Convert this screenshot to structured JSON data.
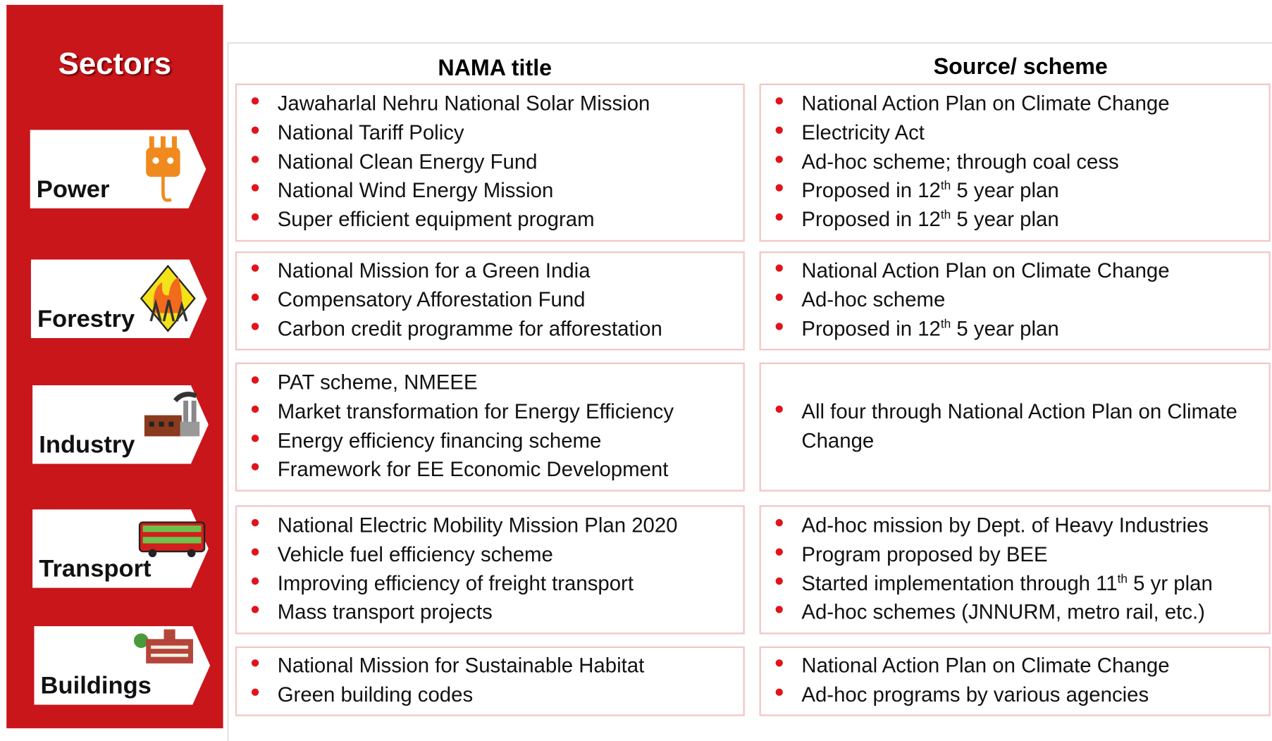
{
  "sidebar": {
    "title": "Sectors"
  },
  "columns": [
    "NAMA title",
    "Source/ scheme"
  ],
  "rows": [
    {
      "sector": "Power",
      "nama": [
        "Jawaharlal Nehru National Solar Mission",
        "National Tariff Policy",
        "National Clean Energy Fund",
        "National Wind Energy Mission",
        "Super efficient equipment program"
      ],
      "source": [
        "National Action Plan on Climate Change",
        "Electricity Act",
        "Ad-hoc scheme; through coal cess",
        [
          "Proposed in 12",
          "th",
          " 5 year plan"
        ],
        [
          "Proposed in 12",
          "th",
          " 5 year plan"
        ]
      ]
    },
    {
      "sector": "Forestry",
      "nama": [
        "National Mission for a Green India",
        "Compensatory Afforestation Fund",
        "Carbon credit programme for afforestation"
      ],
      "source": [
        "National Action Plan on Climate Change",
        "Ad-hoc scheme",
        [
          "Proposed in 12",
          "th",
          " 5 year plan"
        ]
      ]
    },
    {
      "sector": "Industry",
      "nama": [
        "PAT scheme, NMEEE",
        "Market transformation for Energy Efficiency",
        "Energy efficiency financing scheme",
        "Framework for EE Economic Development"
      ],
      "source": [
        "All four through National Action Plan on Climate Change"
      ]
    },
    {
      "sector": "Transport",
      "nama": [
        "National Electric Mobility Mission Plan 2020",
        "Vehicle fuel efficiency scheme",
        "Improving efficiency of freight transport",
        "Mass transport projects"
      ],
      "source": [
        "Ad-hoc mission  by Dept. of Heavy Industries",
        "Program proposed by BEE",
        [
          "Started implementation through 11",
          "th",
          " 5 yr plan"
        ],
        "Ad-hoc schemes (JNNURM, metro rail, etc.)"
      ]
    },
    {
      "sector": "Buildings",
      "nama": [
        "National Mission for Sustainable Habitat",
        "Green building codes"
      ],
      "source": [
        "National Action Plan on Climate Change",
        "Ad-hoc programs by various agencies"
      ]
    }
  ]
}
